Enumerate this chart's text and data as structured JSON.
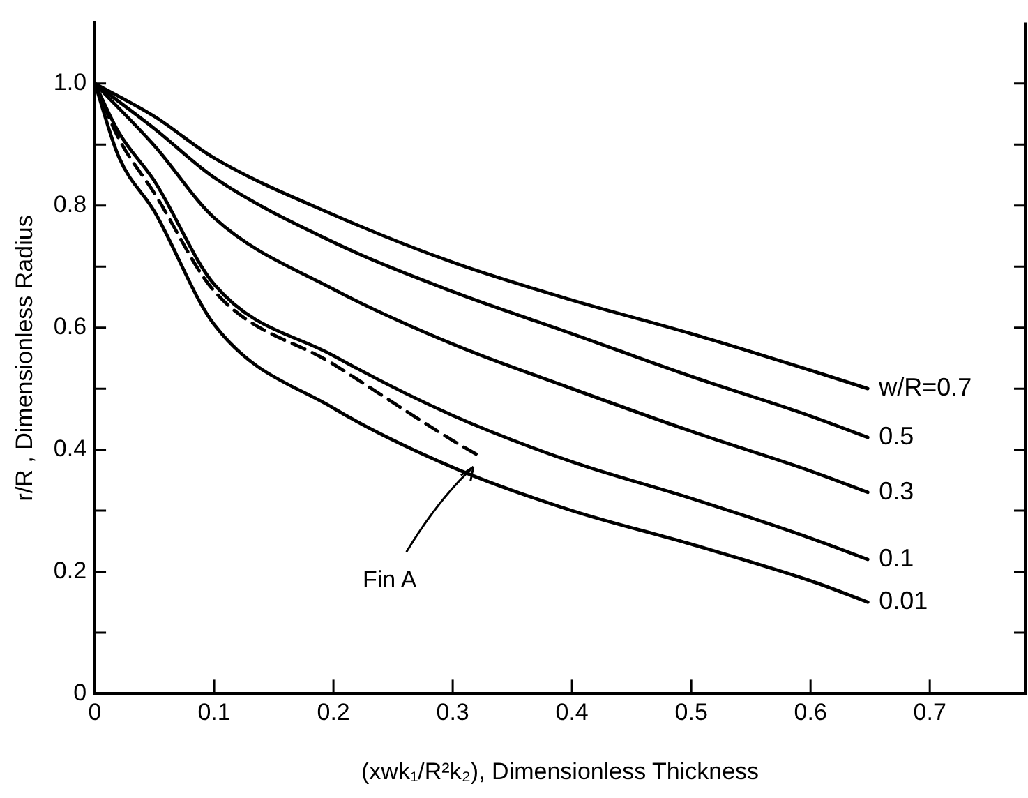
{
  "chart_data": {
    "type": "line",
    "xlabel": "(xwk₁/R²k₂), Dimensionless Thickness",
    "ylabel": "r/R , Dimensionless Radius",
    "xlim": [
      0,
      0.78
    ],
    "ylim": [
      0,
      1.1
    ],
    "xticks": [
      0,
      0.1,
      0.2,
      0.3,
      0.4,
      0.5,
      0.6,
      0.7
    ],
    "yticks": [
      {
        "value": 0,
        "label": "0"
      },
      {
        "value": 0.1,
        "label": null
      },
      {
        "value": 0.2,
        "label": "0.2"
      },
      {
        "value": 0.3,
        "label": null
      },
      {
        "value": 0.4,
        "label": "0.4"
      },
      {
        "value": 0.5,
        "label": null
      },
      {
        "value": 0.6,
        "label": "0.6"
      },
      {
        "value": 0.7,
        "label": null
      },
      {
        "value": 0.8,
        "label": "0.8"
      },
      {
        "value": 0.9,
        "label": null
      },
      {
        "value": 1,
        "label": "1.0"
      }
    ],
    "grid": false,
    "legend": "right",
    "marker": "none",
    "line_style": "solid",
    "series": [
      {
        "name": "w/R=0.7",
        "color": "#000000",
        "x": [
          0,
          0.05,
          0.1,
          0.2,
          0.3,
          0.4,
          0.5,
          0.6,
          0.648
        ],
        "values": [
          1,
          0.946,
          0.878,
          0.785,
          0.707,
          0.645,
          0.59,
          0.53,
          0.5
        ]
      },
      {
        "name": "0.5",
        "color": "#000000",
        "x": [
          0,
          0.05,
          0.1,
          0.2,
          0.3,
          0.4,
          0.5,
          0.6,
          0.648
        ],
        "values": [
          1,
          0.926,
          0.846,
          0.74,
          0.659,
          0.59,
          0.52,
          0.455,
          0.42
        ]
      },
      {
        "name": "0.3",
        "color": "#000000",
        "x": [
          0,
          0.05,
          0.1,
          0.2,
          0.3,
          0.4,
          0.5,
          0.6,
          0.648
        ],
        "values": [
          1,
          0.898,
          0.78,
          0.663,
          0.573,
          0.5,
          0.43,
          0.365,
          0.33
        ]
      },
      {
        "name": "0.1",
        "color": "#000000",
        "x": [
          0,
          0.02,
          0.05,
          0.1,
          0.2,
          0.3,
          0.4,
          0.5,
          0.6,
          0.648
        ],
        "values": [
          1,
          0.92,
          0.84,
          0.671,
          0.554,
          0.456,
          0.38,
          0.32,
          0.255,
          0.22
        ]
      },
      {
        "name": "0.01",
        "color": "#000000",
        "x": [
          0,
          0.02,
          0.05,
          0.1,
          0.2,
          0.3,
          0.4,
          0.5,
          0.6,
          0.648
        ],
        "values": [
          1,
          0.88,
          0.79,
          0.605,
          0.468,
          0.371,
          0.3,
          0.245,
          0.185,
          0.15
        ]
      },
      {
        "color": "#000000",
        "line_style": "dashed",
        "x": [
          0,
          0.02,
          0.05,
          0.1,
          0.2,
          0.3,
          0.322
        ],
        "values": [
          1,
          0.91,
          0.82,
          0.66,
          0.54,
          0.415,
          0.39
        ]
      }
    ],
    "annotations": [
      "Fin A"
    ]
  }
}
